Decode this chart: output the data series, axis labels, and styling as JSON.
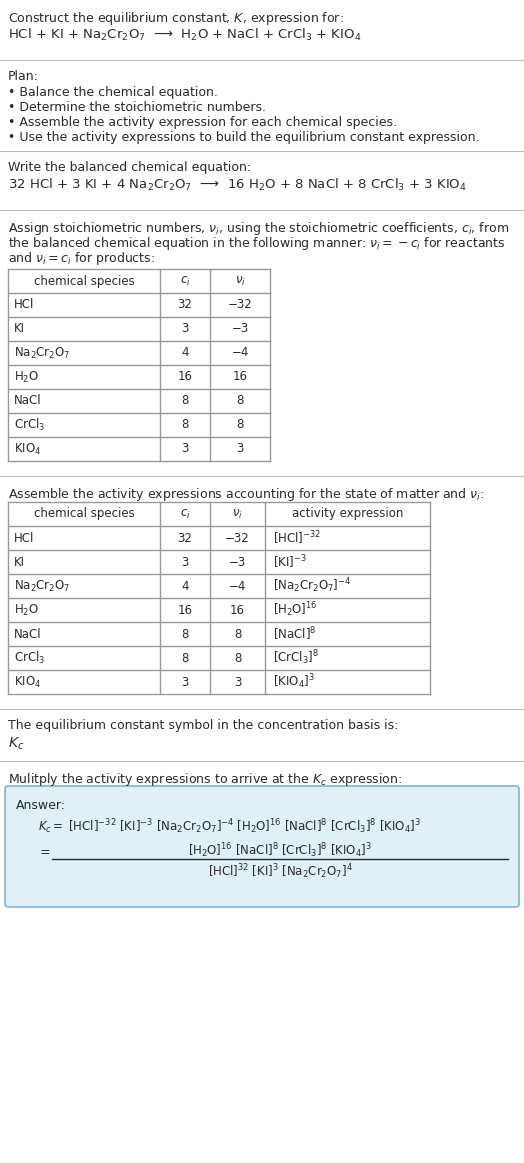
{
  "bg_color": "#ffffff",
  "text_color": "#2a2a2a",
  "table_border_color": "#999999",
  "separator_color": "#bbbbbb",
  "answer_box_color": "#dff0f7",
  "answer_box_border": "#7ab8d4",
  "sections": {
    "title": "Construct the equilibrium constant, $K$, expression for:",
    "reaction_unbalanced": "HCl + KI + Na$_2$Cr$_2$O$_7$  ⟶  H$_2$O + NaCl + CrCl$_3$ + KIO$_4$",
    "plan_header": "Plan:",
    "plan_items": [
      "• Balance the chemical equation.",
      "• Determine the stoichiometric numbers.",
      "• Assemble the activity expression for each chemical species.",
      "• Use the activity expressions to build the equilibrium constant expression."
    ],
    "balanced_header": "Write the balanced chemical equation:",
    "balanced_eq": "32 HCl + 3 KI + 4 Na$_2$Cr$_2$O$_7$  ⟶  16 H$_2$O + 8 NaCl + 8 CrCl$_3$ + 3 KIO$_4$",
    "stoich_text": [
      "Assign stoichiometric numbers, $\\nu_i$, using the stoichiometric coefficients, $c_i$, from",
      "the balanced chemical equation in the following manner: $\\nu_i = -c_i$ for reactants",
      "and $\\nu_i = c_i$ for products:"
    ],
    "table1_col_headers": [
      "chemical species",
      "$c_i$",
      "$\\nu_i$"
    ],
    "table1_data": [
      [
        "HCl",
        "32",
        "−32"
      ],
      [
        "KI",
        "3",
        "−3"
      ],
      [
        "Na$_2$Cr$_2$O$_7$",
        "4",
        "−4"
      ],
      [
        "H$_2$O",
        "16",
        "16"
      ],
      [
        "NaCl",
        "8",
        "8"
      ],
      [
        "CrCl$_3$",
        "8",
        "8"
      ],
      [
        "KIO$_4$",
        "3",
        "3"
      ]
    ],
    "activity_text": "Assemble the activity expressions accounting for the state of matter and $\\nu_i$:",
    "table2_col_headers": [
      "chemical species",
      "$c_i$",
      "$\\nu_i$",
      "activity expression"
    ],
    "table2_data": [
      [
        "HCl",
        "32",
        "−32",
        "[HCl]$^{-32}$"
      ],
      [
        "KI",
        "3",
        "−3",
        "[KI]$^{-3}$"
      ],
      [
        "Na$_2$Cr$_2$O$_7$",
        "4",
        "−4",
        "[Na$_2$Cr$_2$O$_7$]$^{-4}$"
      ],
      [
        "H$_2$O",
        "16",
        "16",
        "[H$_2$O]$^{16}$"
      ],
      [
        "NaCl",
        "8",
        "8",
        "[NaCl]$^{8}$"
      ],
      [
        "CrCl$_3$",
        "8",
        "8",
        "[CrCl$_3$]$^{8}$"
      ],
      [
        "KIO$_4$",
        "3",
        "3",
        "[KIO$_4$]$^{3}$"
      ]
    ],
    "kc_text": "The equilibrium constant symbol in the concentration basis is:",
    "kc_symbol": "$K_c$",
    "multiply_text": "Mulitply the activity expressions to arrive at the $K_c$ expression:",
    "answer_label": "Answer:",
    "kc_eq_line1": "$K_c = $ [HCl]$^{-32}$ [KI]$^{-3}$ [Na$_2$Cr$_2$O$_7$]$^{-4}$ [H$_2$O]$^{16}$ [NaCl]$^{8}$ [CrCl$_3$]$^{8}$ [KIO$_4$]$^{3}$",
    "kc_num": "[H$_2$O]$^{16}$ [NaCl]$^{8}$ [CrCl$_3$]$^{8}$ [KIO$_4$]$^{3}$",
    "kc_den": "[HCl]$^{32}$ [KI]$^{3}$ [Na$_2$Cr$_2$O$_7$]$^{4}$"
  }
}
